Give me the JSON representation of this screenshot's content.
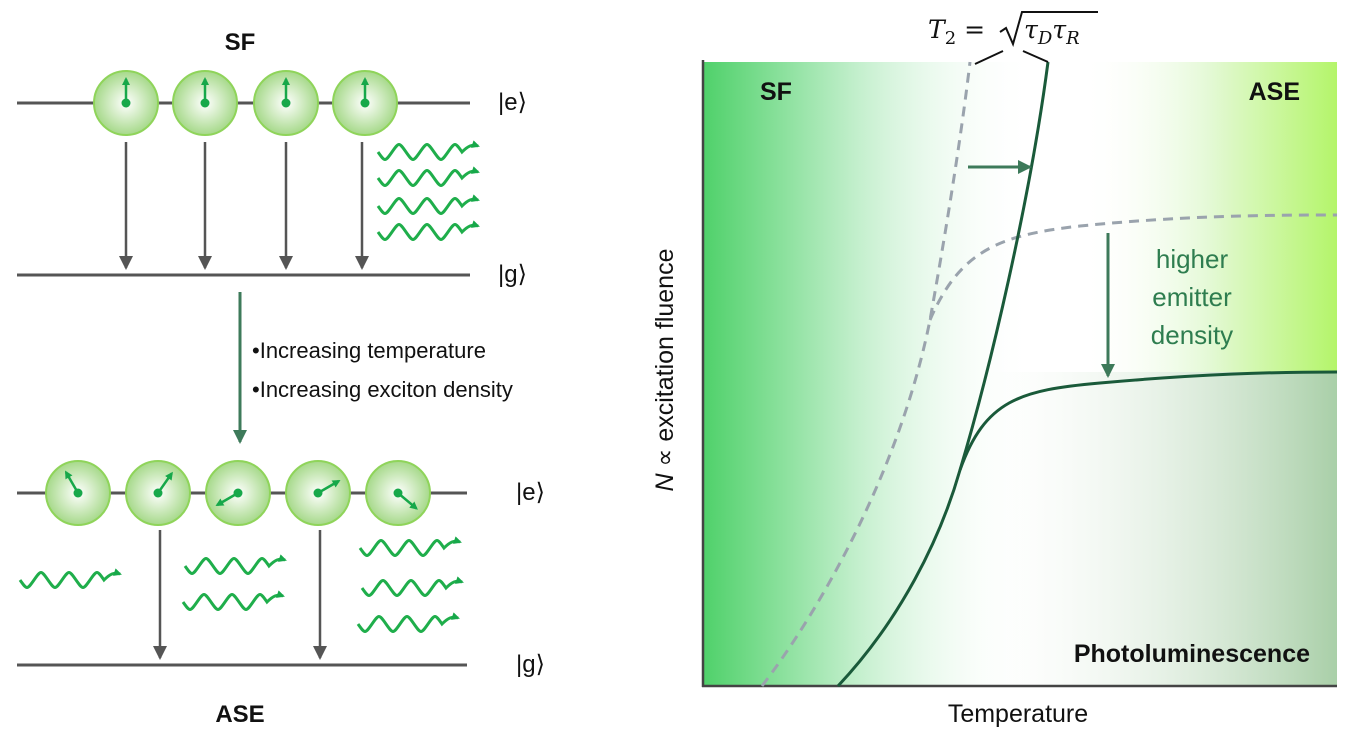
{
  "left": {
    "top_title": "SF",
    "bottom_title": "ASE",
    "state_e": "|e⟩",
    "state_g": "|g⟩",
    "bullets": [
      "•Increasing temperature",
      "•Increasing exciton density"
    ]
  },
  "right": {
    "formula": {
      "lhs": "T",
      "sub": "2",
      "eq": " = ",
      "tau1": "τ",
      "sub1": "D",
      "tau2": "τ",
      "sub2": "R"
    },
    "region_sf": "SF",
    "region_ase": "ASE",
    "region_pl": "Photoluminescence",
    "annotation": [
      "higher",
      "emitter",
      "density"
    ],
    "xlabel": "Temperature",
    "ylabel_var": "N",
    "ylabel_rest": " ∝ excitation fluence"
  },
  "colors": {
    "green": "#1fae4b",
    "dark_green": "#1a5a3a",
    "gray": "#555555",
    "dashed": "#9aa3ad",
    "annotation": "#2e7d4f"
  }
}
